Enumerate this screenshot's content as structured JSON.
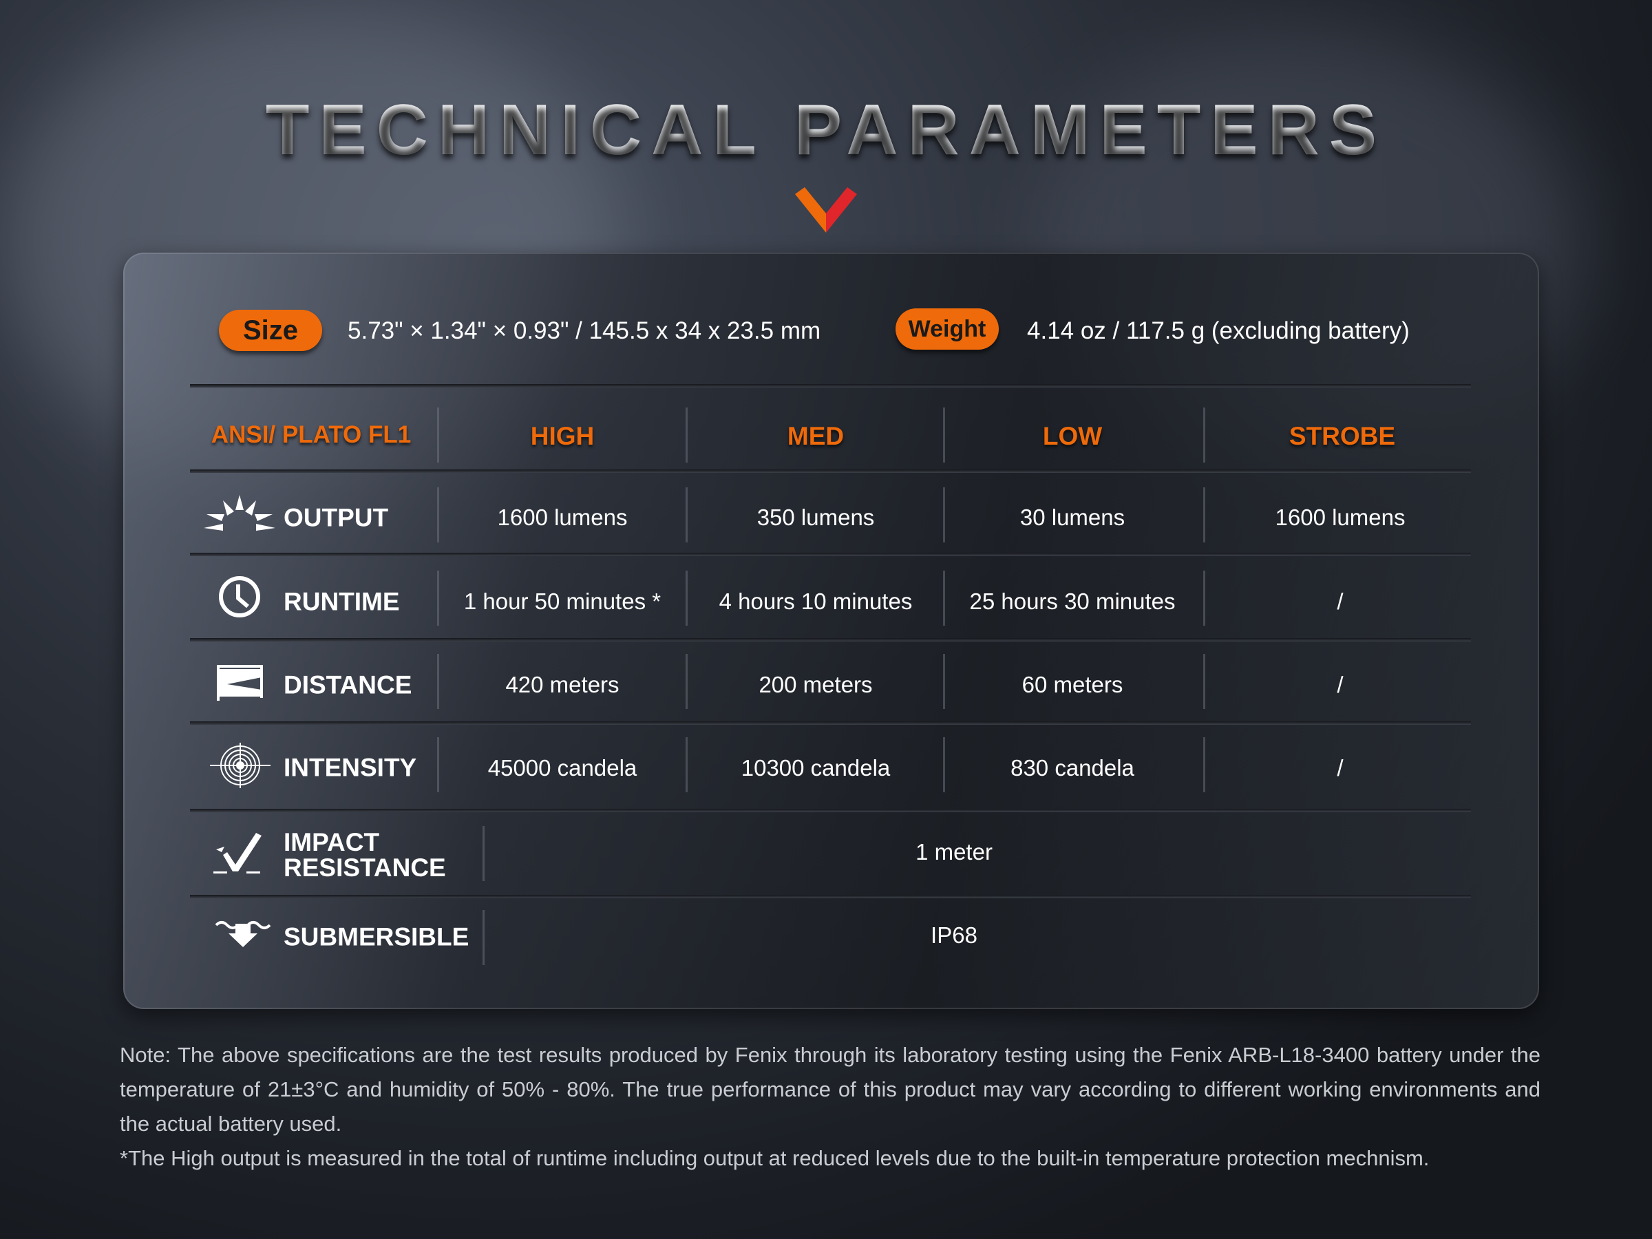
{
  "title": "TECHNICAL PARAMETERS",
  "colors": {
    "accent": "#ef6a0a",
    "chevron_red": "#e0262b"
  },
  "size": {
    "label": "Size",
    "value": "5.73\" × 1.34\" × 0.93\" / 145.5 x 34 x 23.5 mm"
  },
  "weight": {
    "label": "Weight",
    "value": "4.14 oz / 117.5 g (excluding battery)"
  },
  "table": {
    "headers": [
      "ANSI/ PLATO  FL1",
      "HIGH",
      "MED",
      "LOW",
      "STROBE"
    ],
    "rows": [
      {
        "icon": "sun-rays-icon",
        "label": "OUTPUT",
        "values": [
          "1600 lumens",
          "350 lumens",
          "30 lumens",
          "1600 lumens"
        ]
      },
      {
        "icon": "clock-icon",
        "label": "RUNTIME",
        "values": [
          "1 hour 50 minutes *",
          "4 hours 10 minutes",
          "25  hours 30 minutes",
          "/"
        ]
      },
      {
        "icon": "distance-beam-icon",
        "label": "DISTANCE",
        "values": [
          "420 meters",
          "200 meters",
          "60 meters",
          "/"
        ]
      },
      {
        "icon": "target-icon",
        "label": "INTENSITY",
        "values": [
          "45000 candela",
          "10300 candela",
          "830 candela",
          "/"
        ]
      },
      {
        "icon": "impact-check-icon",
        "label_line1": "IMPACT",
        "label_line2": "RESISTANCE",
        "value": "1 meter"
      },
      {
        "icon": "submersible-arrow-icon",
        "label": "SUBMERSIBLE",
        "value": "IP68"
      }
    ]
  },
  "note": {
    "line1": "Note: The above specifications are the test results produced by Fenix through its laboratory testing using the Fenix ARB-L18-3400 battery under the temperature of 21±3°C and humidity of 50% - 80%. The true performance of this product may vary according to different working environments and the actual battery used.",
    "line2": "*The High output is measured in the total of runtime including output at reduced levels due to the built-in temperature protection mechnism."
  }
}
